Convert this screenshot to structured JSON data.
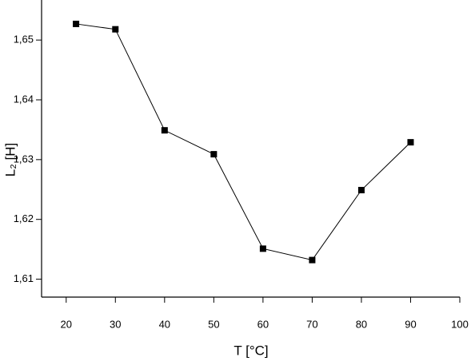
{
  "chart_data": {
    "type": "line",
    "x_label": "T [°C]",
    "y_label": "L₂ [H]",
    "x": [
      22,
      30,
      40,
      50,
      60,
      70,
      80,
      90
    ],
    "series": [
      {
        "color": "#000000",
        "values": [
          1.6527,
          1.6518,
          1.6349,
          1.6309,
          1.6151,
          1.6132,
          1.6249,
          1.6329
        ]
      }
    ],
    "xlim": [
      15,
      100
    ],
    "xticks": [
      20,
      30,
      40,
      50,
      60,
      70,
      80,
      90,
      100
    ],
    "ylim": [
      1.607,
      1.6567
    ],
    "yticks": [
      {
        "value": 1.61,
        "label": "1,61"
      },
      {
        "value": 1.62,
        "label": "1,62"
      },
      {
        "value": 1.63,
        "label": "1,63"
      },
      {
        "value": 1.64,
        "label": "1,64"
      },
      {
        "value": 1.65,
        "label": "1,65"
      }
    ],
    "grid": false
  }
}
